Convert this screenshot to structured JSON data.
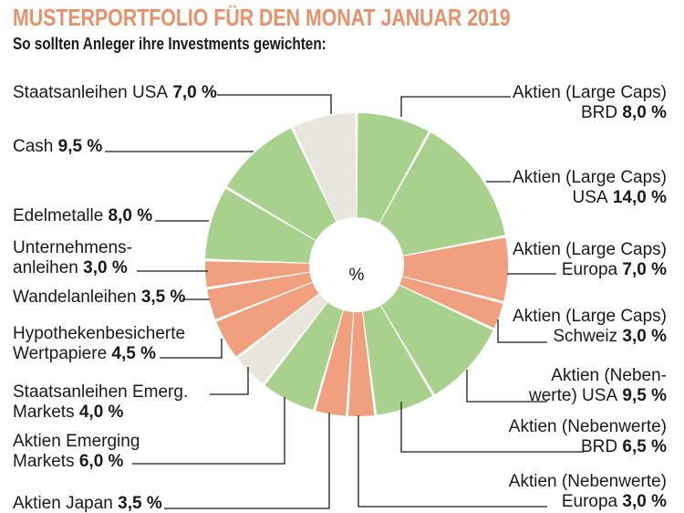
{
  "title": "MUSTERPORTFOLIO FÜR DEN MONAT JANUAR 2019",
  "subtitle": "So sollten Anleger ihre Investments gewichten:",
  "center_label": "%",
  "colors": {
    "green": "#a9d18e",
    "salmon": "#f0a07e",
    "beige": "#e7e5dc",
    "title": "#e8906a"
  },
  "chart_data": {
    "type": "pie",
    "title": "MUSTERPORTFOLIO FÜR DEN MONAT JANUAR 2019",
    "subtitle": "So sollten Anleger ihre Investments gewichten:",
    "unit": "%",
    "slices": [
      {
        "label": "Aktien (Large Caps) BRD",
        "label_lines": [
          "Aktien (Large Caps)",
          "BRD"
        ],
        "value": 8.0,
        "value_text": "8,0 %",
        "color": "green"
      },
      {
        "label": "Aktien (Large Caps) USA",
        "label_lines": [
          "Aktien (Large Caps)",
          "USA"
        ],
        "value": 14.0,
        "value_text": "14,0 %",
        "color": "green"
      },
      {
        "label": "Aktien (Large Caps) Europa",
        "label_lines": [
          "Aktien (Large Caps)",
          "Europa"
        ],
        "value": 7.0,
        "value_text": "7,0 %",
        "color": "salmon"
      },
      {
        "label": "Aktien (Large Caps) Schweiz",
        "label_lines": [
          "Aktien (Large Caps)",
          "Schweiz"
        ],
        "value": 3.0,
        "value_text": "3,0 %",
        "color": "salmon"
      },
      {
        "label": "Aktien (Nebenwerte) USA",
        "label_lines": [
          "Aktien (Neben-",
          "werte) USA"
        ],
        "value": 9.5,
        "value_text": "9,5 %",
        "color": "green"
      },
      {
        "label": "Aktien (Nebenwerte) BRD",
        "label_lines": [
          "Aktien (Nebenwerte)",
          "BRD"
        ],
        "value": 6.5,
        "value_text": "6,5 %",
        "color": "green"
      },
      {
        "label": "Aktien (Nebenwerte) Europa",
        "label_lines": [
          "Aktien (Nebenwerte)",
          "Europa"
        ],
        "value": 3.0,
        "value_text": "3,0 %",
        "color": "salmon"
      },
      {
        "label": "Aktien Japan",
        "label_lines": [
          "Aktien Japan"
        ],
        "value": 3.5,
        "value_text": "3,5 %",
        "color": "salmon"
      },
      {
        "label": "Aktien Emerging Markets",
        "label_lines": [
          "Aktien Emerging",
          "Markets"
        ],
        "value": 6.0,
        "value_text": "6,0 %",
        "color": "green"
      },
      {
        "label": "Staatsanleihen Emerg. Markets",
        "label_lines": [
          "Staatsanleihen Emerg.",
          "Markets"
        ],
        "value": 4.0,
        "value_text": "4,0 %",
        "color": "beige"
      },
      {
        "label": "Hypothekenbesicherte Wertpapiere",
        "label_lines": [
          "Hypothekenbesicherte",
          "Wertpapiere"
        ],
        "value": 4.5,
        "value_text": "4,5 %",
        "color": "salmon"
      },
      {
        "label": "Wandelanleihen",
        "label_lines": [
          "Wandelanleihen"
        ],
        "value": 3.5,
        "value_text": "3,5 %",
        "color": "salmon"
      },
      {
        "label": "Unternehmensanleihen",
        "label_lines": [
          "Unternehmens-",
          "anleihen"
        ],
        "value": 3.0,
        "value_text": "3,0 %",
        "color": "salmon"
      },
      {
        "label": "Edelmetalle",
        "label_lines": [
          "Edelmetalle"
        ],
        "value": 8.0,
        "value_text": "8,0 %",
        "color": "green"
      },
      {
        "label": "Cash",
        "label_lines": [
          "Cash"
        ],
        "value": 9.5,
        "value_text": "9,5 %",
        "color": "green"
      },
      {
        "label": "Staatsanleihen USA",
        "label_lines": [
          "Staatsanleihen USA"
        ],
        "value": 7.0,
        "value_text": "7,0 %",
        "color": "beige"
      }
    ]
  }
}
